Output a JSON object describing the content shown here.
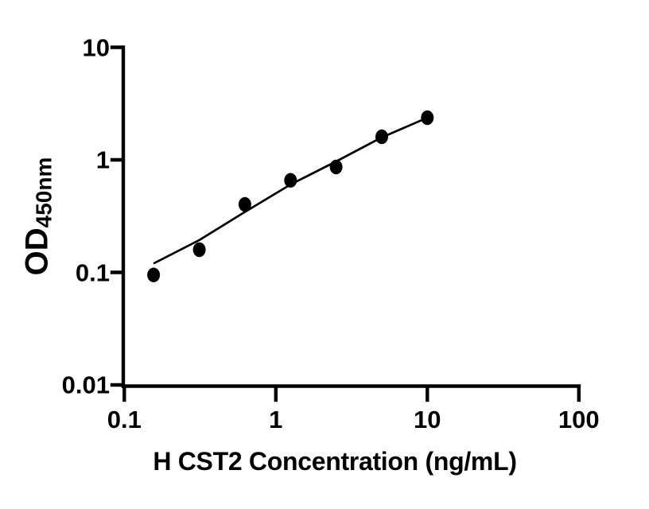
{
  "figure": {
    "background": "#ffffff",
    "ink_color": "#000000"
  },
  "chart_data": {
    "type": "scatter",
    "title": "",
    "xlabel": "H CST2 Concentration (ng/mL)",
    "ylabel_main": "OD",
    "ylabel_sub": "450nm",
    "x_scale": "log",
    "y_scale": "log",
    "xlim": [
      0.1,
      100
    ],
    "ylim": [
      0.01,
      10
    ],
    "x_ticks": [
      0.1,
      1,
      10,
      100
    ],
    "x_tick_labels": [
      "0.1",
      "1",
      "10",
      "100"
    ],
    "y_ticks": [
      10,
      1,
      0.1,
      0.01
    ],
    "y_tick_labels": [
      "10",
      "1",
      "0.1",
      "0.01"
    ],
    "grid": false,
    "legend": null,
    "series": [
      {
        "name": "standard-curve-points",
        "marker": "filled-circle",
        "color": "#000000",
        "points": [
          {
            "x": 0.156,
            "y": 0.095
          },
          {
            "x": 0.3125,
            "y": 0.159
          },
          {
            "x": 0.625,
            "y": 0.402
          },
          {
            "x": 1.25,
            "y": 0.658
          },
          {
            "x": 2.5,
            "y": 0.864
          },
          {
            "x": 5,
            "y": 1.603
          },
          {
            "x": 10,
            "y": 2.369
          }
        ]
      }
    ],
    "fit_curve": [
      {
        "x": 0.158,
        "y": 0.121
      },
      {
        "x": 0.311,
        "y": 0.193
      },
      {
        "x": 0.62,
        "y": 0.342
      },
      {
        "x": 1.25,
        "y": 0.604
      },
      {
        "x": 2.5,
        "y": 0.968
      },
      {
        "x": 4.97,
        "y": 1.578
      },
      {
        "x": 10.0,
        "y": 2.369
      }
    ]
  }
}
